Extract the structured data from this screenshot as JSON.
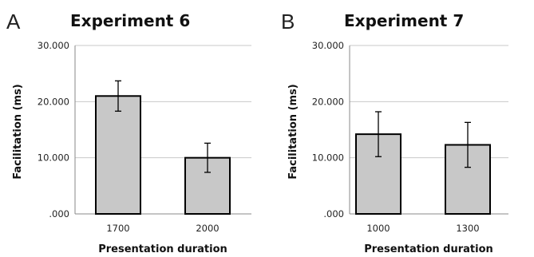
{
  "chart_data": [
    {
      "type": "bar",
      "panel_letter": "A",
      "title": "Experiment 6",
      "xlabel": "Presentation duration",
      "ylabel": "Facilitation (ms)",
      "ylim": [
        0,
        30
      ],
      "yticks": [
        0,
        10,
        20,
        30
      ],
      "ytick_labels": [
        ".000",
        "10.000",
        "20.000",
        "30.000"
      ],
      "grid": true,
      "categories": [
        "1700",
        "2000"
      ],
      "values": [
        21.0,
        10.0
      ],
      "error": [
        2.7,
        2.6
      ],
      "colors": {
        "bar_fill": "#c8c8c8",
        "bar_edge": "#000000"
      }
    },
    {
      "type": "bar",
      "panel_letter": "B",
      "title": "Experiment 7",
      "xlabel": "Presentation duration",
      "ylabel": "Facilitation (ms)",
      "ylim": [
        0,
        30
      ],
      "yticks": [
        0,
        10,
        20,
        30
      ],
      "ytick_labels": [
        ".000",
        "10.000",
        "20.000",
        "30.000"
      ],
      "grid": true,
      "categories": [
        "1000",
        "1300"
      ],
      "values": [
        14.2,
        12.3
      ],
      "error": [
        4.0,
        4.0
      ],
      "colors": {
        "bar_fill": "#c8c8c8",
        "bar_edge": "#000000"
      }
    }
  ]
}
